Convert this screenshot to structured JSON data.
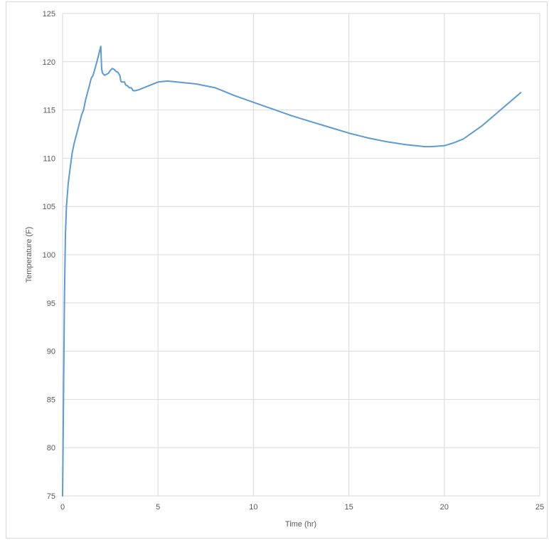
{
  "chart_data": {
    "type": "line",
    "title": "",
    "xlabel": "Time (hr)",
    "ylabel": "Temperature (F)",
    "xlim": [
      0,
      25
    ],
    "ylim": [
      75,
      125
    ],
    "xticks": [
      0,
      5,
      10,
      15,
      20,
      25
    ],
    "yticks": [
      75,
      80,
      85,
      90,
      95,
      100,
      105,
      110,
      115,
      120,
      125
    ],
    "grid": true,
    "legend": "none",
    "line_color": "#5b9bd5",
    "series": [
      {
        "x": [
          0,
          0.05,
          0.1,
          0.15,
          0.2,
          0.3,
          0.4,
          0.5,
          0.6,
          0.8,
          1.0,
          1.1,
          1.2,
          1.4,
          1.5,
          1.6,
          1.8,
          1.9,
          2.0,
          2.05,
          2.1,
          2.2,
          2.4,
          2.5,
          2.6,
          2.7,
          2.8,
          2.9,
          3.0,
          3.05,
          3.1,
          3.2,
          3.25,
          3.3,
          3.4,
          3.5,
          3.6,
          3.7,
          3.8,
          4.0,
          4.5,
          5.0,
          5.5,
          6.0,
          7.0,
          8.0,
          8.5,
          9.0,
          10.0,
          11.0,
          12.0,
          13.0,
          14.0,
          15.0,
          16.0,
          17.0,
          18.0,
          19.0,
          19.3,
          20.0,
          20.5,
          21.0,
          22.0,
          23.0,
          24.0
        ],
        "y": [
          75,
          85,
          96,
          102,
          105,
          107.5,
          109,
          110.5,
          111.5,
          113,
          114.5,
          115,
          116,
          117.5,
          118.3,
          118.6,
          120,
          120.8,
          121.6,
          119.2,
          118.8,
          118.6,
          118.8,
          119.1,
          119.3,
          119.2,
          119.0,
          118.9,
          118.6,
          118.0,
          117.9,
          117.9,
          117.9,
          117.6,
          117.5,
          117.3,
          117.3,
          117.0,
          117.0,
          117.1,
          117.5,
          117.9,
          118.0,
          117.9,
          117.7,
          117.3,
          116.9,
          116.5,
          115.8,
          115.1,
          114.4,
          113.8,
          113.2,
          112.6,
          112.1,
          111.7,
          111.4,
          111.2,
          111.2,
          111.3,
          111.6,
          112.0,
          113.4,
          115.1,
          116.8
        ]
      }
    ]
  }
}
